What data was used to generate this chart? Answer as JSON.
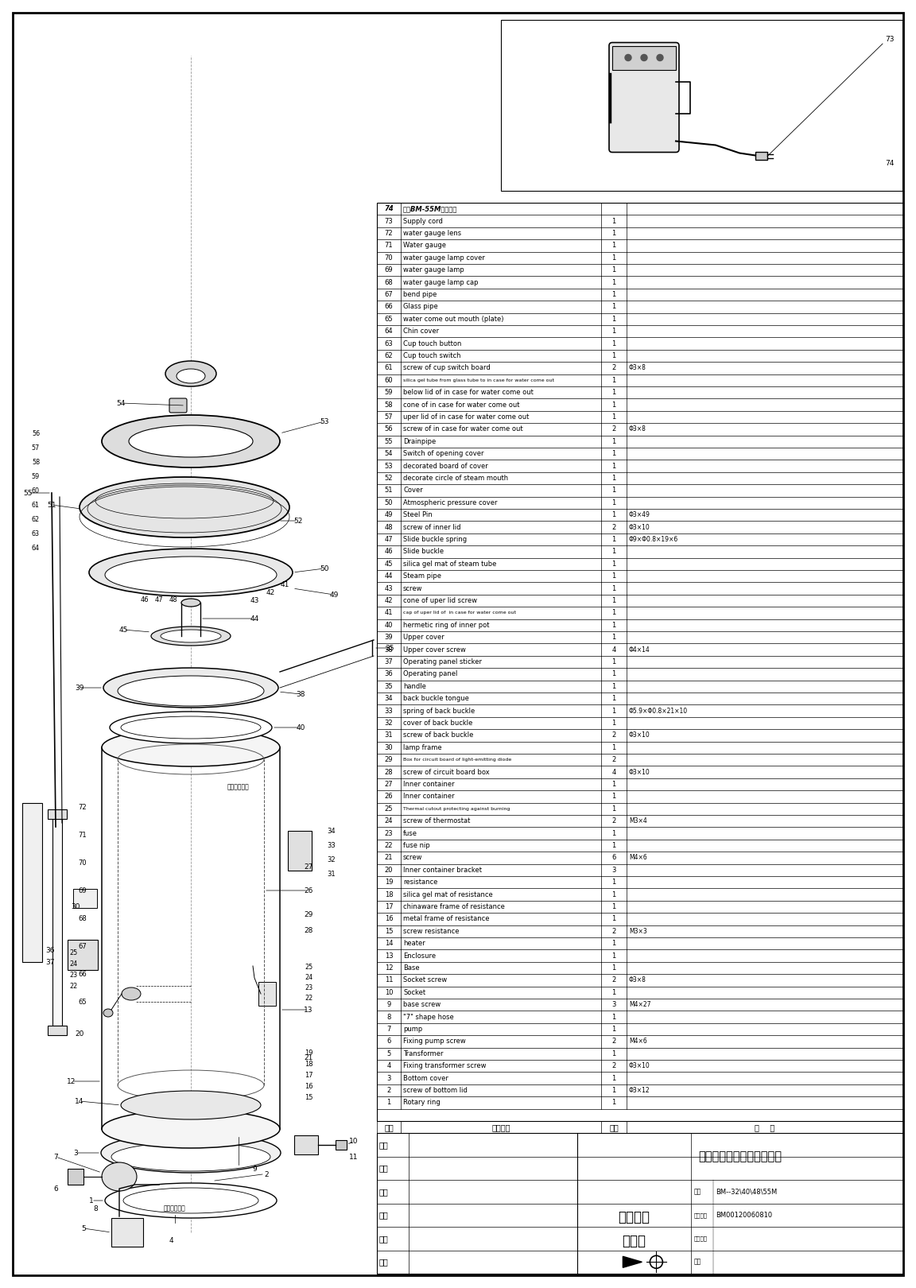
{
  "bg_color": "#ffffff",
  "border_color": "#000000",
  "company": "中山市维奥仕电器有限公司",
  "series": "晶酷系列",
  "diagram_type": "爆炸图",
  "model": "BM--32\\40\\48\\55M",
  "doc_number": "BM00120060810",
  "parts": [
    {
      "no": 74,
      "name": "晶酷BM-55M外形图样",
      "qty": "",
      "note": "",
      "bold": true,
      "italic": false
    },
    {
      "no": 73,
      "name": "Supply cord",
      "qty": "1",
      "note": ""
    },
    {
      "no": 72,
      "name": "water gauge lens",
      "qty": "1",
      "note": ""
    },
    {
      "no": 71,
      "name": "Water gauge",
      "qty": "1",
      "note": ""
    },
    {
      "no": 70,
      "name": "water gauge lamp cover",
      "qty": "1",
      "note": ""
    },
    {
      "no": 69,
      "name": "water gauge lamp",
      "qty": "1",
      "note": ""
    },
    {
      "no": 68,
      "name": "water gauge lamp cap",
      "qty": "1",
      "note": ""
    },
    {
      "no": 67,
      "name": "bend pipe",
      "qty": "1",
      "note": ""
    },
    {
      "no": 66,
      "name": "Glass pipe",
      "qty": "1",
      "note": ""
    },
    {
      "no": 65,
      "name": "water come out mouth (plate)",
      "qty": "1",
      "note": ""
    },
    {
      "no": 64,
      "name": "Chin cover",
      "qty": "1",
      "note": ""
    },
    {
      "no": 63,
      "name": "Cup touch button",
      "qty": "1",
      "note": ""
    },
    {
      "no": 62,
      "name": "Cup touch switch",
      "qty": "1",
      "note": ""
    },
    {
      "no": 61,
      "name": "screw of cup switch board",
      "qty": "2",
      "note": "Φ3×8"
    },
    {
      "no": 60,
      "name": "silica gel tube from glass tube to in case for water come out",
      "qty": "1",
      "note": "",
      "tiny": true
    },
    {
      "no": 59,
      "name": "below lid of in case for water come out",
      "qty": "1",
      "note": ""
    },
    {
      "no": 58,
      "name": "cone of in case for water come out",
      "qty": "1",
      "note": ""
    },
    {
      "no": 57,
      "name": "uper lid of in case for water come out",
      "qty": "1",
      "note": ""
    },
    {
      "no": 56,
      "name": "screw of in case for water come out",
      "qty": "2",
      "note": "Φ3×8"
    },
    {
      "no": 55,
      "name": "Drainpipe",
      "qty": "1",
      "note": ""
    },
    {
      "no": 54,
      "name": "Switch of opening cover",
      "qty": "1",
      "note": ""
    },
    {
      "no": 53,
      "name": "decorated board of cover",
      "qty": "1",
      "note": ""
    },
    {
      "no": 52,
      "name": "decorate circle of steam mouth",
      "qty": "1",
      "note": ""
    },
    {
      "no": 51,
      "name": "Cover",
      "qty": "1",
      "note": ""
    },
    {
      "no": 50,
      "name": "Atmospheric pressure cover",
      "qty": "1",
      "note": ""
    },
    {
      "no": 49,
      "name": "Steel Pin",
      "qty": "1",
      "note": "Φ3×49"
    },
    {
      "no": 48,
      "name": "screw of inner lid",
      "qty": "2",
      "note": "Φ3×10"
    },
    {
      "no": 47,
      "name": "Slide buckle spring",
      "qty": "1",
      "note": "Φ9×Φ0.8×19×6"
    },
    {
      "no": 46,
      "name": "Slide buckle",
      "qty": "1",
      "note": ""
    },
    {
      "no": 45,
      "name": "silica gel mat of steam tube",
      "qty": "1",
      "note": ""
    },
    {
      "no": 44,
      "name": "Steam pipe",
      "qty": "1",
      "note": ""
    },
    {
      "no": 43,
      "name": "screw",
      "qty": "1",
      "note": ""
    },
    {
      "no": 42,
      "name": "cone of uper lid screw",
      "qty": "1",
      "note": ""
    },
    {
      "no": 41,
      "name": "cap of uper lid of  in case for water come out",
      "qty": "1",
      "note": "",
      "tiny": true
    },
    {
      "no": 40,
      "name": "hermetic ring of inner pot",
      "qty": "1",
      "note": ""
    },
    {
      "no": 39,
      "name": "Upper cover",
      "qty": "1",
      "note": ""
    },
    {
      "no": 38,
      "name": "Upper cover screw",
      "qty": "4",
      "note": "Φ4×14"
    },
    {
      "no": 37,
      "name": "Operating panel sticker",
      "qty": "1",
      "note": ""
    },
    {
      "no": 36,
      "name": "Operating panel",
      "qty": "1",
      "note": ""
    },
    {
      "no": 35,
      "name": "handle",
      "qty": "1",
      "note": ""
    },
    {
      "no": 34,
      "name": "back buckle tongue",
      "qty": "1",
      "note": ""
    },
    {
      "no": 33,
      "name": "spring of back buckle",
      "qty": "1",
      "note": "Φ5.9×Φ0.8×21×10"
    },
    {
      "no": 32,
      "name": "cover of back buckle",
      "qty": "1",
      "note": ""
    },
    {
      "no": 31,
      "name": "screw of back buckle",
      "qty": "2",
      "note": "Φ3×10"
    },
    {
      "no": 30,
      "name": "lamp frame",
      "qty": "1",
      "note": ""
    },
    {
      "no": 29,
      "name": "Box for circuit board of light-emitting diode",
      "qty": "2",
      "note": "",
      "tiny": true
    },
    {
      "no": 28,
      "name": "screw of circuit board box",
      "qty": "4",
      "note": "Φ3×10"
    },
    {
      "no": 27,
      "name": "Inner container",
      "qty": "1",
      "note": ""
    },
    {
      "no": 26,
      "name": "Inner container",
      "qty": "1",
      "note": ""
    },
    {
      "no": 25,
      "name": "Thermal cutout protecting against burning",
      "qty": "1",
      "note": "",
      "tiny": true
    },
    {
      "no": 24,
      "name": "screw of thermostat",
      "qty": "2",
      "note": "M3×4"
    },
    {
      "no": 23,
      "name": "fuse",
      "qty": "1",
      "note": ""
    },
    {
      "no": 22,
      "name": "fuse nip",
      "qty": "1",
      "note": ""
    },
    {
      "no": 21,
      "name": "screw",
      "qty": "6",
      "note": "M4×6"
    },
    {
      "no": 20,
      "name": "Inner container bracket",
      "qty": "3",
      "note": ""
    },
    {
      "no": 19,
      "name": "resistance",
      "qty": "1",
      "note": ""
    },
    {
      "no": 18,
      "name": "silica gel mat of resistance",
      "qty": "1",
      "note": ""
    },
    {
      "no": 17,
      "name": "chinaware frame of resistance",
      "qty": "1",
      "note": ""
    },
    {
      "no": 16,
      "name": "metal frame of resistance",
      "qty": "1",
      "note": ""
    },
    {
      "no": 15,
      "name": "screw resistance",
      "qty": "2",
      "note": "M3×3"
    },
    {
      "no": 14,
      "name": "heater",
      "qty": "1",
      "note": ""
    },
    {
      "no": 13,
      "name": "Enclosure",
      "qty": "1",
      "note": ""
    },
    {
      "no": 12,
      "name": "Base",
      "qty": "1",
      "note": ""
    },
    {
      "no": 11,
      "name": "Socket screw",
      "qty": "2",
      "note": "Φ3×8"
    },
    {
      "no": 10,
      "name": "Socket",
      "qty": "1",
      "note": ""
    },
    {
      "no": 9,
      "name": "base screw",
      "qty": "3",
      "note": "M4×27"
    },
    {
      "no": 8,
      "name": "\"7\" shape hose",
      "qty": "1",
      "note": ""
    },
    {
      "no": 7,
      "name": "pump",
      "qty": "1",
      "note": ""
    },
    {
      "no": 6,
      "name": "Fixing pump screw",
      "qty": "2",
      "note": "M4×6"
    },
    {
      "no": 5,
      "name": "Transformer",
      "qty": "1",
      "note": ""
    },
    {
      "no": 4,
      "name": "Fixing transformer screw",
      "qty": "2",
      "note": "Φ3×10"
    },
    {
      "no": 3,
      "name": "Bottom cover",
      "qty": "1",
      "note": ""
    },
    {
      "no": 2,
      "name": "screw of bottom lid",
      "qty": "1",
      "note": "Φ3×12"
    },
    {
      "no": 1,
      "name": "Rotary ring",
      "qty": "1",
      "note": ""
    }
  ],
  "header_row": [
    "序号",
    "零名称件",
    "数量",
    "备    注"
  ],
  "footer_left_labels": [
    "编制",
    "日期",
    "效对",
    "日期",
    "批准",
    "日期"
  ]
}
